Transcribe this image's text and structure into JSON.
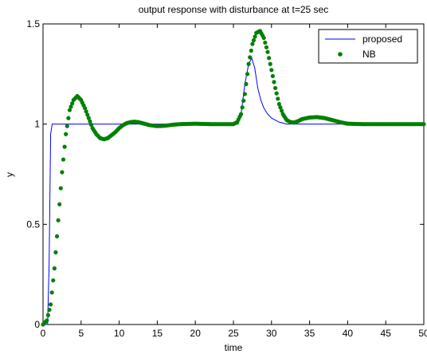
{
  "chart_data": {
    "type": "line",
    "title": "output response with disturbance at t=25 sec",
    "xlabel": "time",
    "ylabel": "y",
    "xlim": [
      0,
      50
    ],
    "ylim": [
      0,
      1.5
    ],
    "xticks": [
      "0",
      "5",
      "10",
      "15",
      "20",
      "25",
      "30",
      "35",
      "40",
      "45",
      "50"
    ],
    "yticks": [
      "0",
      "0.5",
      "1",
      "1.5"
    ],
    "grid": false,
    "legend_position": "top-right",
    "series": [
      {
        "name": "proposed",
        "style": "line",
        "color": "#0000ff",
        "points": [
          [
            0,
            0
          ],
          [
            0.6,
            0
          ],
          [
            0.8,
            0.3
          ],
          [
            1.0,
            0.95
          ],
          [
            1.2,
            1.0
          ],
          [
            25.6,
            1.0
          ],
          [
            26.0,
            1.05
          ],
          [
            26.5,
            1.2
          ],
          [
            27.0,
            1.3
          ],
          [
            27.4,
            1.33
          ],
          [
            27.8,
            1.28
          ],
          [
            28.2,
            1.18
          ],
          [
            28.6,
            1.12
          ],
          [
            29.0,
            1.08
          ],
          [
            29.5,
            1.05
          ],
          [
            30.0,
            1.03
          ],
          [
            30.5,
            1.02
          ],
          [
            31.0,
            1.01
          ],
          [
            32.0,
            1.0
          ],
          [
            50,
            1.0
          ]
        ]
      },
      {
        "name": "NB",
        "style": "markers",
        "color": "#008000",
        "points": [
          [
            0,
            0
          ],
          [
            0.5,
            0.02
          ],
          [
            1.0,
            0.1
          ],
          [
            1.5,
            0.28
          ],
          [
            2.0,
            0.52
          ],
          [
            2.5,
            0.76
          ],
          [
            3.0,
            0.95
          ],
          [
            3.5,
            1.07
          ],
          [
            4.0,
            1.12
          ],
          [
            4.5,
            1.14
          ],
          [
            5.0,
            1.12
          ],
          [
            5.5,
            1.08
          ],
          [
            6.0,
            1.03
          ],
          [
            6.5,
            0.98
          ],
          [
            7.0,
            0.95
          ],
          [
            7.5,
            0.93
          ],
          [
            8.0,
            0.925
          ],
          [
            8.5,
            0.93
          ],
          [
            9.0,
            0.945
          ],
          [
            9.5,
            0.96
          ],
          [
            10.0,
            0.98
          ],
          [
            10.5,
            0.995
          ],
          [
            11.0,
            1.005
          ],
          [
            11.5,
            1.01
          ],
          [
            12.0,
            1.012
          ],
          [
            12.5,
            1.01
          ],
          [
            13.0,
            1.005
          ],
          [
            13.5,
            1.0
          ],
          [
            14.0,
            0.995
          ],
          [
            15.0,
            0.99
          ],
          [
            16.0,
            0.992
          ],
          [
            17.0,
            0.997
          ],
          [
            18.0,
            1.0
          ],
          [
            20.0,
            1.002
          ],
          [
            22.0,
            1.0
          ],
          [
            24.0,
            1.0
          ],
          [
            25.0,
            1.0
          ],
          [
            25.5,
            1.01
          ],
          [
            26.0,
            1.05
          ],
          [
            26.5,
            1.15
          ],
          [
            27.0,
            1.3
          ],
          [
            27.5,
            1.4
          ],
          [
            28.0,
            1.455
          ],
          [
            28.5,
            1.465
          ],
          [
            29.0,
            1.43
          ],
          [
            29.5,
            1.36
          ],
          [
            30.0,
            1.27
          ],
          [
            30.5,
            1.18
          ],
          [
            31.0,
            1.1
          ],
          [
            31.5,
            1.05
          ],
          [
            32.0,
            1.02
          ],
          [
            32.5,
            1.01
          ],
          [
            33.0,
            1.008
          ],
          [
            33.5,
            1.015
          ],
          [
            34.0,
            1.025
          ],
          [
            35.0,
            1.033
          ],
          [
            36.0,
            1.035
          ],
          [
            37.0,
            1.03
          ],
          [
            38.0,
            1.02
          ],
          [
            39.0,
            1.01
          ],
          [
            40.0,
            1.002
          ],
          [
            42.0,
            1.0
          ],
          [
            45.0,
            1.0
          ],
          [
            48.0,
            1.0
          ],
          [
            50.0,
            1.0
          ]
        ]
      }
    ]
  }
}
